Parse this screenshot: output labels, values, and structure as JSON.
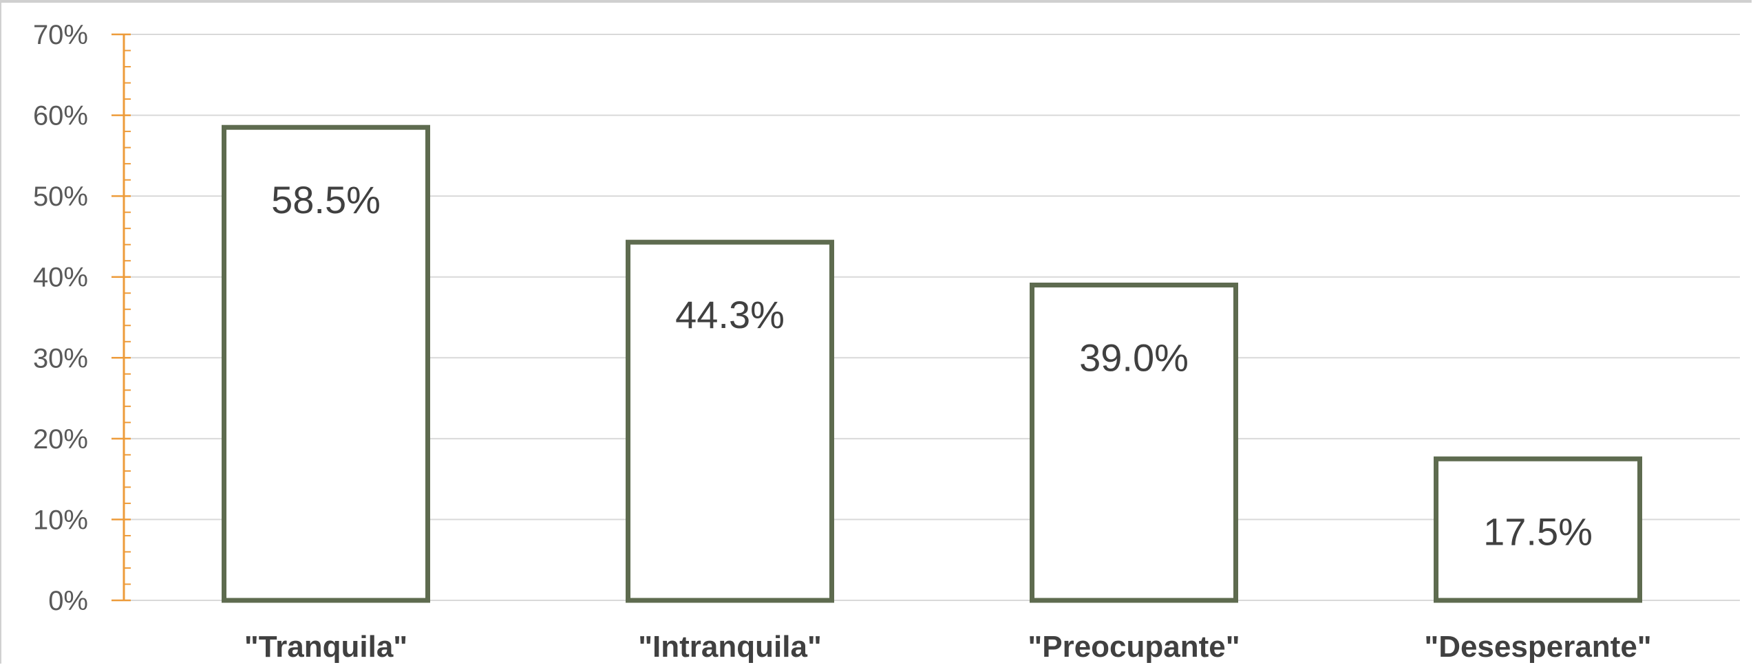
{
  "chart_data": {
    "type": "bar",
    "title": "",
    "xlabel": "",
    "ylabel": "",
    "categories": [
      "\"Tranquila\"",
      "\"Intranquila\"",
      "\"Preocupante\"",
      "\"Desesperante\""
    ],
    "values": [
      58.5,
      44.3,
      39.0,
      17.5
    ],
    "data_labels": [
      "58.5%",
      "44.3%",
      "39.0%",
      "17.5%"
    ],
    "ylim": [
      0,
      70
    ],
    "yticks": [
      0,
      10,
      20,
      30,
      40,
      50,
      60,
      70
    ],
    "ytick_labels": [
      "0%",
      "10%",
      "20%",
      "30%",
      "40%",
      "50%",
      "60%",
      "70%"
    ],
    "grid": true,
    "legend": "none",
    "colors": {
      "bar_outline": "#5e6b4f",
      "bar_fill": "#ffffff",
      "axis": "#ed9b3a",
      "grid": "#d9d9d9"
    }
  }
}
